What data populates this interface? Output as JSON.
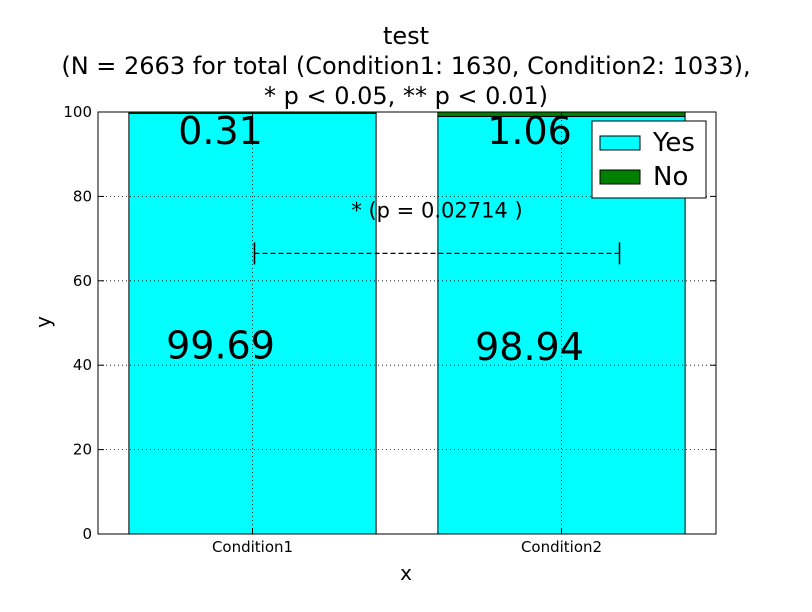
{
  "chart_data": {
    "type": "bar",
    "stacked": true,
    "title_lines": [
      "test",
      "(N = 2663 for total (Condition1: 1630, Condition2: 1033),",
      "* p < 0.05, ** p < 0.01)"
    ],
    "xlabel": "x",
    "ylabel": "y",
    "categories": [
      "Condition1",
      "Condition2"
    ],
    "series": [
      {
        "name": "Yes",
        "color": "#00ffff",
        "values": [
          99.69,
          98.94
        ]
      },
      {
        "name": "No",
        "color": "#008000",
        "values": [
          0.31,
          1.06
        ]
      }
    ],
    "ylim": [
      0,
      100
    ],
    "yticks": [
      0,
      20,
      40,
      60,
      80,
      100
    ],
    "grid": true,
    "legend_position": "top-right",
    "data_labels": [
      {
        "category": "Condition1",
        "series": "Yes",
        "text": "99.69"
      },
      {
        "category": "Condition1",
        "series": "No",
        "text": "0.31"
      },
      {
        "category": "Condition2",
        "series": "Yes",
        "text": "98.94"
      },
      {
        "category": "Condition2",
        "series": "No",
        "text": "1.06"
      }
    ],
    "significance": {
      "text": "* (p = 0.02714 )",
      "between": [
        "Condition1",
        "Condition2"
      ],
      "y": 66.5
    }
  }
}
